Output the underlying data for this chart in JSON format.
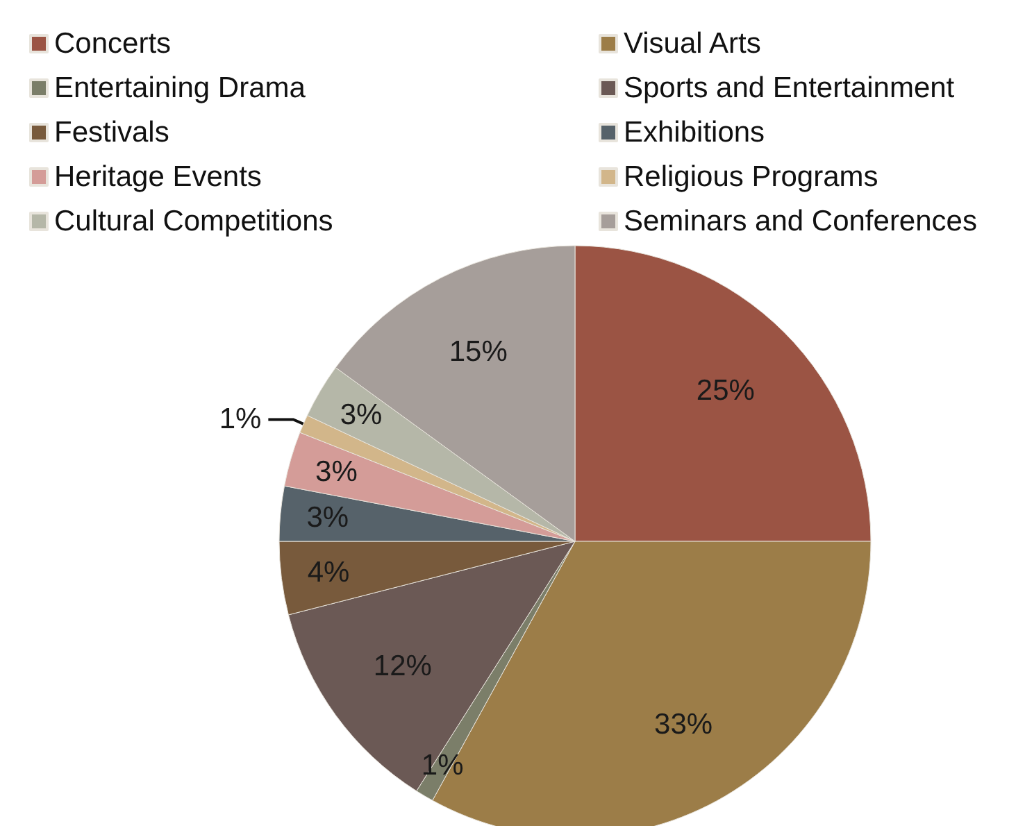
{
  "chart_data": {
    "type": "pie",
    "categories": [
      "Concerts",
      "Visual Arts",
      "Entertaining Drama",
      "Sports and Entertainment",
      "Festivals",
      "Exhibitions",
      "Heritage Events",
      "Religious Programs",
      "Cultural Competitions",
      "Seminars and Conferences"
    ],
    "values": [
      25,
      33,
      1,
      12,
      4,
      3,
      3,
      1,
      3,
      15
    ],
    "colors": [
      "#9b5444",
      "#9c7d48",
      "#7b7e69",
      "#6b5955",
      "#785a3c",
      "#56626a",
      "#d49c98",
      "#d2b68a",
      "#b5b7a8",
      "#a69e9a"
    ],
    "value_labels": [
      "25%",
      "33%",
      "1%",
      "12%",
      "4%",
      "3%",
      "3%",
      "1%",
      "3%",
      "15%"
    ],
    "legend": "top"
  }
}
